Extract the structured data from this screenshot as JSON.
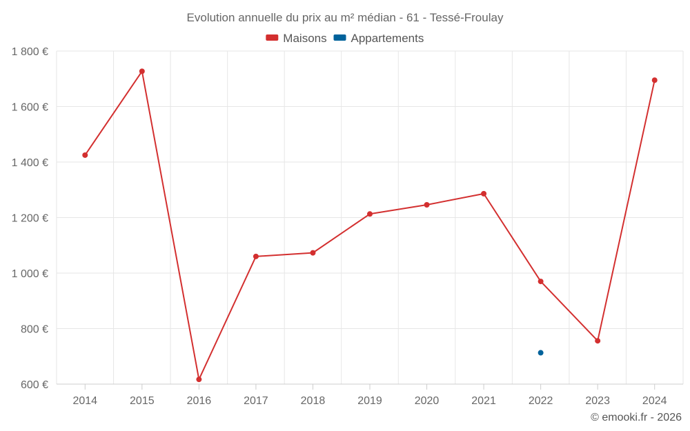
{
  "chart_data": {
    "type": "line",
    "title": "Evolution annuelle du prix au m² médian - 61 - Tessé-Froulay",
    "categories": [
      "2014",
      "2015",
      "2016",
      "2017",
      "2018",
      "2019",
      "2020",
      "2021",
      "2022",
      "2023",
      "2024"
    ],
    "series": [
      {
        "name": "Maisons",
        "color": "#d32f2f",
        "values": [
          1425,
          1727,
          617,
          1060,
          1073,
          1213,
          1246,
          1286,
          970,
          756,
          1695
        ]
      },
      {
        "name": "Appartements",
        "color": "#00629b",
        "values": [
          null,
          null,
          null,
          null,
          null,
          null,
          null,
          null,
          713,
          null,
          null
        ]
      }
    ],
    "ylim": [
      600,
      1800
    ],
    "yticks": [
      600,
      800,
      1000,
      1200,
      1400,
      1600,
      1800
    ],
    "ytick_labels": [
      "600 €",
      "800 €",
      "1 000 €",
      "1 200 €",
      "1 400 €",
      "1 600 €",
      "1 800 €"
    ],
    "xlabel": "",
    "ylabel": "",
    "grid": true,
    "legend_position": "top-center"
  },
  "footer": {
    "credit": "© emooki.fr - 2026"
  }
}
